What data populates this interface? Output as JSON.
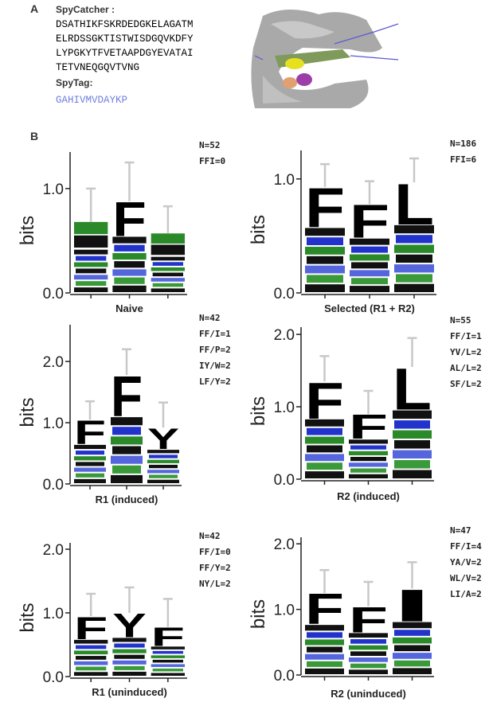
{
  "panel_a": {
    "label": "A",
    "spycatcher_title": "SpyCatcher :",
    "sequence_lines": [
      "DSATHIKFSKRDEDGKELAGATM",
      "ELRDSSGKTISTWISDGQVKDFY",
      "LYPGKYTFVETAAPDGYEVATAI",
      "TETVNEQGQVTVNG"
    ],
    "spytag_title": "SpyTag:",
    "spytag": "GAHIVMVDAYKP"
  },
  "panel_b_label": "B",
  "chart_data": [
    {
      "type": "logo",
      "title": "Naive",
      "y_label": "bits",
      "ylim": [
        0,
        1.35
      ],
      "yticks": [
        {
          "value": 0,
          "label": "0.0"
        },
        {
          "value": 1,
          "label": "1.0"
        }
      ],
      "annotations": [
        "N=52",
        "FFI=0"
      ],
      "top_letters": [
        null,
        "F",
        null
      ],
      "values": [
        0.68,
        0.88,
        0.57
      ],
      "errors": [
        0.32,
        0.37,
        0.26
      ]
    },
    {
      "type": "logo",
      "title": "Selected (R1 + R2)",
      "y_label": "bits",
      "ylim": [
        0,
        1.25
      ],
      "yticks": [
        {
          "value": 0,
          "label": "0.0"
        },
        {
          "value": 1,
          "label": "1.0"
        }
      ],
      "annotations": [
        "N=186",
        "FFI=6"
      ],
      "top_letters": [
        "F",
        "F",
        "L"
      ],
      "values": [
        0.93,
        0.78,
        0.97
      ],
      "errors": [
        0.2,
        0.2,
        0.21
      ]
    },
    {
      "type": "logo",
      "title": "R1 (induced)",
      "y_label": "bits",
      "ylim": [
        0,
        2.6
      ],
      "yticks": [
        {
          "value": 0,
          "label": "0.0"
        },
        {
          "value": 1,
          "label": "1.0"
        },
        {
          "value": 2,
          "label": "2.0"
        }
      ],
      "annotations": [
        "N=42",
        "FF/I=1",
        "FF/P=2",
        "IY/W=2",
        "LF/Y=2"
      ],
      "top_letters": [
        "F",
        "F",
        "Y"
      ],
      "values": [
        1.05,
        1.78,
        0.92
      ],
      "errors": [
        0.3,
        0.42,
        0.41
      ]
    },
    {
      "type": "logo",
      "title": "R2 (induced)",
      "y_label": "bits",
      "ylim": [
        0,
        2.1
      ],
      "yticks": [
        {
          "value": 0,
          "label": "0.0"
        },
        {
          "value": 1,
          "label": "1.0"
        },
        {
          "value": 2,
          "label": "2.0"
        }
      ],
      "annotations": [
        "N=55",
        "FF/I=1",
        "YV/L=2",
        "AL/L=2",
        "SF/L=2"
      ],
      "top_letters": [
        "F",
        "F",
        "L"
      ],
      "values": [
        1.35,
        0.9,
        1.55
      ],
      "errors": [
        0.35,
        0.32,
        0.4
      ]
    },
    {
      "type": "logo",
      "title": "R1 (uninduced)",
      "y_label": "bits",
      "ylim": [
        0,
        2.1
      ],
      "yticks": [
        {
          "value": 0,
          "label": "0.0"
        },
        {
          "value": 1,
          "label": "1.0"
        },
        {
          "value": 2,
          "label": "2.0"
        }
      ],
      "annotations": [
        "N=42",
        "FF/I=0",
        "FF/Y=2",
        "NY/L=2"
      ],
      "top_letters": [
        "F",
        "Y",
        "F"
      ],
      "values": [
        0.95,
        1.0,
        0.78
      ],
      "errors": [
        0.35,
        0.4,
        0.44
      ]
    },
    {
      "type": "logo",
      "title": "R2 (uninduced)",
      "y_label": "bits",
      "ylim": [
        0,
        2.1
      ],
      "yticks": [
        {
          "value": 0,
          "label": "0.0"
        },
        {
          "value": 1,
          "label": "1.0"
        },
        {
          "value": 2,
          "label": "2.0"
        }
      ],
      "annotations": [
        "N=47",
        "FF/I=4",
        "YA/V=2",
        "WL/V=2",
        "LI/A=2"
      ],
      "top_letters": [
        "F",
        "F",
        "I"
      ],
      "values": [
        1.25,
        1.05,
        1.32
      ],
      "errors": [
        0.35,
        0.37,
        0.4
      ]
    }
  ]
}
